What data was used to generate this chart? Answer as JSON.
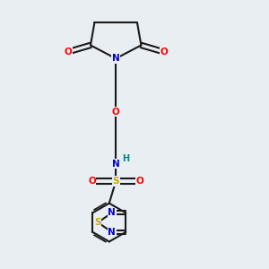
{
  "background_color": "#e8eef2",
  "bond_color": "#1a1a1a",
  "bond_width": 1.5,
  "atom_colors": {
    "O": "#ff0000",
    "N": "#0000cc",
    "S": "#ccaa00",
    "H": "#008888",
    "C": "#1a1a1a"
  },
  "figsize": [
    3.0,
    3.0
  ],
  "dpi": 100
}
